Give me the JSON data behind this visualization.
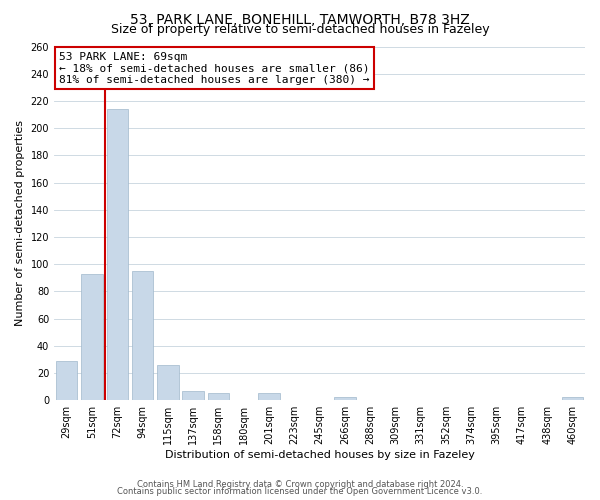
{
  "title": "53, PARK LANE, BONEHILL, TAMWORTH, B78 3HZ",
  "subtitle": "Size of property relative to semi-detached houses in Fazeley",
  "xlabel": "Distribution of semi-detached houses by size in Fazeley",
  "ylabel": "Number of semi-detached properties",
  "bar_labels": [
    "29sqm",
    "51sqm",
    "72sqm",
    "94sqm",
    "115sqm",
    "137sqm",
    "158sqm",
    "180sqm",
    "201sqm",
    "223sqm",
    "245sqm",
    "266sqm",
    "288sqm",
    "309sqm",
    "331sqm",
    "352sqm",
    "374sqm",
    "395sqm",
    "417sqm",
    "438sqm",
    "460sqm"
  ],
  "bar_values": [
    29,
    93,
    214,
    95,
    26,
    7,
    5,
    0,
    5,
    0,
    0,
    2,
    0,
    0,
    0,
    0,
    0,
    0,
    0,
    0,
    2
  ],
  "bar_color": "#c8d8e8",
  "bar_edge_color": "#a0b8cc",
  "vline_color": "#cc0000",
  "vline_x": 1.5,
  "annotation_title": "53 PARK LANE: 69sqm",
  "annotation_line1": "← 18% of semi-detached houses are smaller (86)",
  "annotation_line2": "81% of semi-detached houses are larger (380) →",
  "annotation_box_color": "#ffffff",
  "annotation_box_edge": "#cc0000",
  "ylim": [
    0,
    260
  ],
  "yticks": [
    0,
    20,
    40,
    60,
    80,
    100,
    120,
    140,
    160,
    180,
    200,
    220,
    240,
    260
  ],
  "footer1": "Contains HM Land Registry data © Crown copyright and database right 2024.",
  "footer2": "Contains public sector information licensed under the Open Government Licence v3.0.",
  "bg_color": "#ffffff",
  "grid_color": "#c8d4de",
  "title_fontsize": 10,
  "subtitle_fontsize": 9,
  "axis_label_fontsize": 8,
  "tick_fontsize": 7,
  "annotation_fontsize": 8,
  "footer_fontsize": 6
}
